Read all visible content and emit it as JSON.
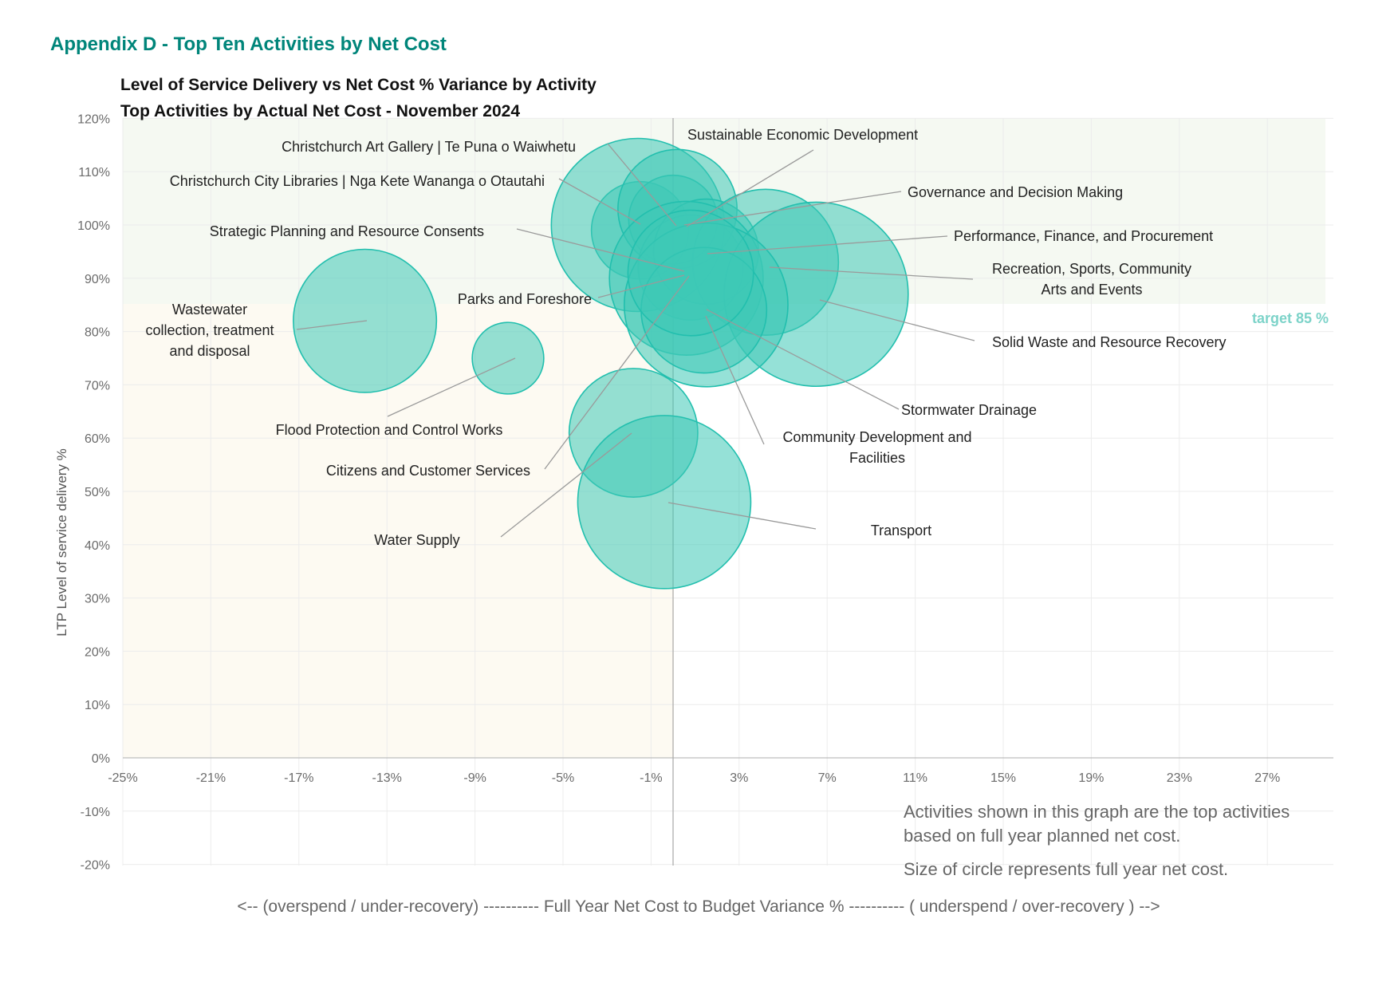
{
  "page_heading": "Appendix D - Top Ten Activities by Net Cost",
  "colors": {
    "heading": "#00857a",
    "bubble_fill": "#3ec8b6",
    "bubble_stroke": "#22bfae",
    "target_text": "#7dd3c9"
  },
  "chart_data": {
    "type": "bubble",
    "title": "Level of Service Delivery vs Net Cost % Variance by Activity",
    "subtitle": "Top Activities by Actual  Net Cost - November 2024",
    "xlabel": "<-- (overspend / under-recovery) ---------- Full Year Net Cost to Budget Variance % ---------- ( underspend / over-recovery ) -->",
    "ylabel": "LTP Level of service delivery %",
    "xlim": [
      -25,
      30
    ],
    "ylim": [
      -20,
      120
    ],
    "x_ticks": [
      -25,
      -21,
      -17,
      -13,
      -9,
      -5,
      -1,
      3,
      7,
      11,
      15,
      19,
      23,
      27
    ],
    "x_tick_labels": [
      "-25%",
      "-21%",
      "-17%",
      "-13%",
      "-9%",
      "-5%",
      "-1%",
      "3%",
      "7%",
      "11%",
      "15%",
      "19%",
      "23%",
      "27%"
    ],
    "y_ticks": [
      -20,
      -10,
      0,
      10,
      20,
      30,
      40,
      50,
      60,
      70,
      80,
      90,
      100,
      110,
      120
    ],
    "y_tick_labels": [
      "-20%",
      "-10%",
      "0%",
      "10%",
      "20%",
      "30%",
      "40%",
      "50%",
      "60%",
      "70%",
      "80%",
      "90%",
      "100%",
      "110%",
      "120%"
    ],
    "target": {
      "value": 85,
      "label": "target 85 %"
    },
    "notes": [
      "Activities shown in this graph are the top activities",
      "based on full year planned net cost.",
      "Size of circle represents full year net cost."
    ],
    "series": [
      {
        "name": "Christchurch Art Gallery | Te Puna o Waiwhetu",
        "x": -1.5,
        "y": 99,
        "size": 12
      },
      {
        "name": "Christchurch City Libraries | Nga Kete Wananga o Otautahi",
        "x": -1.6,
        "y": 100,
        "size": 38
      },
      {
        "name": "Sustainable Economic Development",
        "x": 0,
        "y": 101,
        "size": 10
      },
      {
        "name": "Governance and Decision Making",
        "x": 0.2,
        "y": 103,
        "size": 18
      },
      {
        "name": "Strategic Planning and Resource Consents",
        "x": 0.8,
        "y": 92,
        "size": 14
      },
      {
        "name": "Performance, Finance, and Procurement",
        "x": 1.5,
        "y": 95,
        "size": 14
      },
      {
        "name": "Recreation, Sports, Community Arts and Events",
        "x": 4.2,
        "y": 93,
        "size": 27
      },
      {
        "name": "Parks and Foreshore",
        "x": 0.6,
        "y": 90,
        "size": 30
      },
      {
        "name": "Wastewater collection, treatment and disposal",
        "x": -14,
        "y": 82,
        "size": 26
      },
      {
        "name": "Flood Protection and Control Works",
        "x": -7.5,
        "y": 75,
        "size": 6.5
      },
      {
        "name": "Solid Waste and Resource Recovery",
        "x": 6.5,
        "y": 87,
        "size": 43
      },
      {
        "name": "Stormwater Drainage",
        "x": 1.5,
        "y": 85,
        "size": 34
      },
      {
        "name": "Community Development and Facilities",
        "x": 1.4,
        "y": 84,
        "size": 20
      },
      {
        "name": "Citizens and Customer Services",
        "x": 0.8,
        "y": 91,
        "size": 20
      },
      {
        "name": "Water Supply",
        "x": -1.8,
        "y": 61,
        "size": 21
      },
      {
        "name": "Transport",
        "x": -0.4,
        "y": 48,
        "size": 38
      }
    ],
    "labels": [
      {
        "lines": [
          "Christchurch Art Gallery | Te Puna o Waiwhetu"
        ],
        "anchor": "end"
      },
      {
        "lines": [
          "Christchurch City Libraries | Nga Kete Wananga o Otautahi"
        ],
        "anchor": "end"
      },
      {
        "lines": [
          "Sustainable Economic Development"
        ],
        "anchor": "start"
      },
      {
        "lines": [
          "Governance and Decision Making"
        ],
        "anchor": "start"
      },
      {
        "lines": [
          "Strategic Planning and Resource Consents"
        ],
        "anchor": "end"
      },
      {
        "lines": [
          "Performance, Finance, and Procurement"
        ],
        "anchor": "start"
      },
      {
        "lines": [
          "Recreation, Sports, Community",
          "Arts and Events"
        ],
        "anchor": "middle"
      },
      {
        "lines": [
          "Parks and Foreshore"
        ],
        "anchor": "end"
      },
      {
        "lines": [
          "Wastewater",
          "collection, treatment",
          "and disposal"
        ],
        "anchor": "middle"
      },
      {
        "lines": [
          "Flood Protection and Control Works"
        ],
        "anchor": "middle"
      },
      {
        "lines": [
          "Solid Waste and Resource Recovery"
        ],
        "anchor": "start"
      },
      {
        "lines": [
          "Stormwater Drainage"
        ],
        "anchor": "start"
      },
      {
        "lines": [
          "Community Development and",
          "Facilities"
        ],
        "anchor": "middle"
      },
      {
        "lines": [
          "Citizens and Customer Services"
        ],
        "anchor": "end"
      },
      {
        "lines": [
          "Water Supply"
        ],
        "anchor": "middle"
      },
      {
        "lines": [
          "Transport"
        ],
        "anchor": "middle"
      }
    ]
  }
}
